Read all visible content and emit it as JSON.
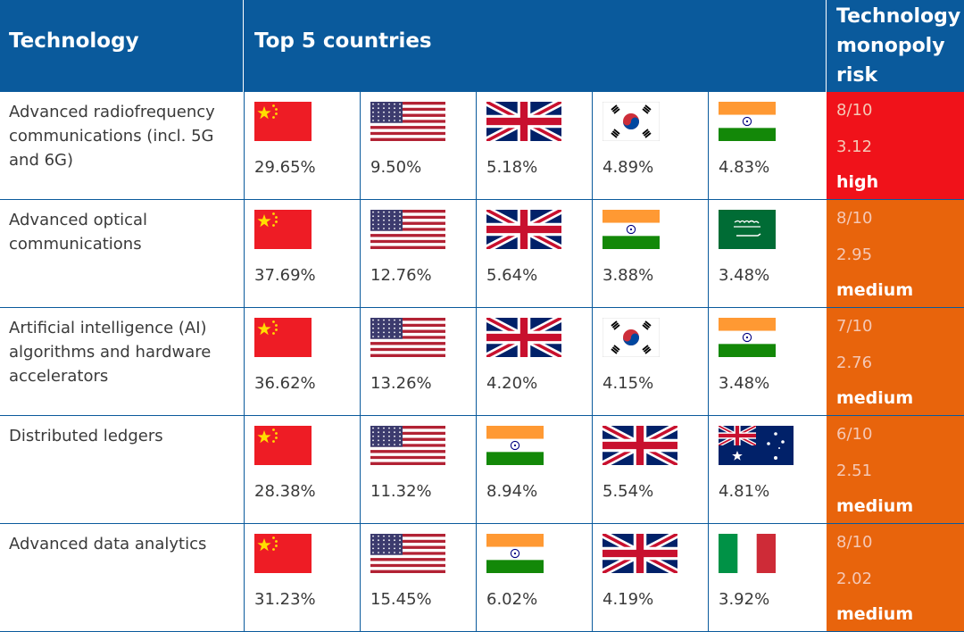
{
  "header": {
    "technology": "Technology",
    "top5": "Top 5 countries",
    "risk": "Technology\nmonopoly\nrisk"
  },
  "colors": {
    "header_bg": "#0a5a9c",
    "risk_high": "#f0121a",
    "risk_medium": "#e8640c"
  },
  "rows": [
    {
      "technology": "Advanced radiofrequency communications (incl. 5G and 6G)",
      "countries": [
        {
          "flag": "china-flag-icon",
          "share": "29.65%"
        },
        {
          "flag": "usa-flag-icon",
          "share": "9.50%"
        },
        {
          "flag": "uk-flag-icon",
          "share": "5.18%"
        },
        {
          "flag": "south-korea-flag-icon",
          "share": "4.89%"
        },
        {
          "flag": "india-flag-icon",
          "share": "4.83%"
        }
      ],
      "risk": {
        "score": "8/10",
        "index": "3.12",
        "level": "high"
      }
    },
    {
      "technology": "Advanced optical communications",
      "countries": [
        {
          "flag": "china-flag-icon",
          "share": "37.69%"
        },
        {
          "flag": "usa-flag-icon",
          "share": "12.76%"
        },
        {
          "flag": "uk-flag-icon",
          "share": "5.64%"
        },
        {
          "flag": "india-flag-icon",
          "share": "3.88%"
        },
        {
          "flag": "saudi-arabia-flag-icon",
          "share": "3.48%"
        }
      ],
      "risk": {
        "score": "8/10",
        "index": "2.95",
        "level": "medium"
      }
    },
    {
      "technology": "Artificial intelligence (AI) algorithms and hardware accelerators",
      "countries": [
        {
          "flag": "china-flag-icon",
          "share": "36.62%"
        },
        {
          "flag": "usa-flag-icon",
          "share": "13.26%"
        },
        {
          "flag": "uk-flag-icon",
          "share": "4.20%"
        },
        {
          "flag": "south-korea-flag-icon",
          "share": "4.15%"
        },
        {
          "flag": "india-flag-icon",
          "share": "3.48%"
        }
      ],
      "risk": {
        "score": "7/10",
        "index": "2.76",
        "level": "medium"
      }
    },
    {
      "technology": "Distributed ledgers",
      "countries": [
        {
          "flag": "china-flag-icon",
          "share": "28.38%"
        },
        {
          "flag": "usa-flag-icon",
          "share": "11.32%"
        },
        {
          "flag": "india-flag-icon",
          "share": "8.94%"
        },
        {
          "flag": "uk-flag-icon",
          "share": "5.54%"
        },
        {
          "flag": "australia-flag-icon",
          "share": "4.81%"
        }
      ],
      "risk": {
        "score": "6/10",
        "index": "2.51",
        "level": "medium"
      }
    },
    {
      "technology": "Advanced data analytics",
      "countries": [
        {
          "flag": "china-flag-icon",
          "share": "31.23%"
        },
        {
          "flag": "usa-flag-icon",
          "share": "15.45%"
        },
        {
          "flag": "india-flag-icon",
          "share": "6.02%"
        },
        {
          "flag": "uk-flag-icon",
          "share": "4.19%"
        },
        {
          "flag": "italy-flag-icon",
          "share": "3.92%"
        }
      ],
      "risk": {
        "score": "8/10",
        "index": "2.02",
        "level": "medium"
      }
    }
  ]
}
